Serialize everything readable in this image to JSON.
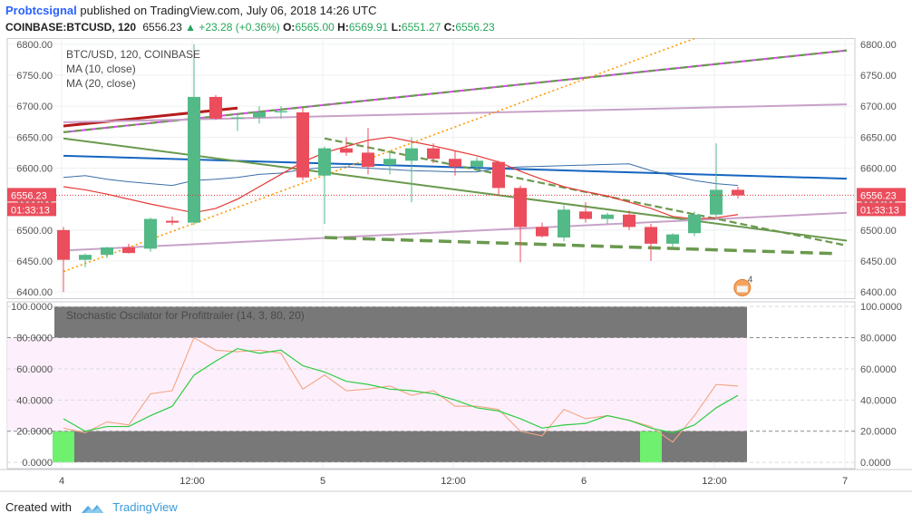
{
  "header": {
    "author": "Probtcsignal",
    "published_text": "published on TradingView.com, July 06, 2018 14:26 UTC",
    "symbol": "COINBASE:BTCUSD, 120",
    "last": "6556.23",
    "change": "+23.28 (+0.36%)",
    "o_label": "O:",
    "open": "6565.00",
    "h_label": "H:",
    "high": "6569.91",
    "l_label": "L:",
    "low": "6551.27",
    "c_label": "C:",
    "close": "6556.23"
  },
  "footer": {
    "created_with": "Created with",
    "brand": "TradingView"
  },
  "colors": {
    "up": "#53b987",
    "down": "#eb4d5c",
    "stoch_k": "#2ecc40",
    "stoch_d": "#f4a582",
    "accent": "#2962ff"
  },
  "chart_data": [
    {
      "type": "candlestick",
      "legend": [
        "BTC/USD, 120, COINBASE",
        "MA (10, close)",
        "MA (20, close)"
      ],
      "ylim": [
        6390,
        6810
      ],
      "y_ticks": [
        6400,
        6450,
        6500,
        6550,
        6600,
        6650,
        6700,
        6750,
        6800
      ],
      "y_tick_labels": [
        "6400.00",
        "6450.00",
        "6500.00",
        "6550.00",
        "6600.00",
        "6650.00",
        "6700.00",
        "6750.00",
        "6800.00"
      ],
      "x_labels": [
        "4",
        "12:00",
        "5",
        "12:00",
        "6",
        "12:00",
        "7"
      ],
      "price_label": "6556.23",
      "countdown_label": "01:33:13",
      "event_badge": "4",
      "candles": [
        {
          "o": 6500,
          "h": 6505,
          "l": 6400,
          "c": 6452
        },
        {
          "o": 6452,
          "h": 6462,
          "l": 6440,
          "c": 6460
        },
        {
          "o": 6460,
          "h": 6473,
          "l": 6455,
          "c": 6472
        },
        {
          "o": 6472,
          "h": 6478,
          "l": 6462,
          "c": 6463
        },
        {
          "o": 6470,
          "h": 6520,
          "l": 6465,
          "c": 6518
        },
        {
          "o": 6515,
          "h": 6522,
          "l": 6508,
          "c": 6512
        },
        {
          "o": 6512,
          "h": 6800,
          "l": 6508,
          "c": 6715
        },
        {
          "o": 6715,
          "h": 6718,
          "l": 6678,
          "c": 6680
        },
        {
          "o": 6680,
          "h": 6688,
          "l": 6660,
          "c": 6682
        },
        {
          "o": 6682,
          "h": 6700,
          "l": 6672,
          "c": 6690
        },
        {
          "o": 6690,
          "h": 6700,
          "l": 6680,
          "c": 6692
        },
        {
          "o": 6690,
          "h": 6698,
          "l": 6580,
          "c": 6585
        },
        {
          "o": 6588,
          "h": 6635,
          "l": 6510,
          "c": 6632
        },
        {
          "o": 6632,
          "h": 6650,
          "l": 6620,
          "c": 6625
        },
        {
          "o": 6625,
          "h": 6665,
          "l": 6590,
          "c": 6602
        },
        {
          "o": 6605,
          "h": 6628,
          "l": 6590,
          "c": 6615
        },
        {
          "o": 6612,
          "h": 6650,
          "l": 6545,
          "c": 6632
        },
        {
          "o": 6632,
          "h": 6640,
          "l": 6608,
          "c": 6615
        },
        {
          "o": 6615,
          "h": 6628,
          "l": 6588,
          "c": 6602
        },
        {
          "o": 6602,
          "h": 6618,
          "l": 6595,
          "c": 6612
        },
        {
          "o": 6610,
          "h": 6612,
          "l": 6555,
          "c": 6568
        },
        {
          "o": 6568,
          "h": 6572,
          "l": 6448,
          "c": 6505
        },
        {
          "o": 6505,
          "h": 6512,
          "l": 6488,
          "c": 6490
        },
        {
          "o": 6488,
          "h": 6540,
          "l": 6482,
          "c": 6533
        },
        {
          "o": 6530,
          "h": 6545,
          "l": 6512,
          "c": 6518
        },
        {
          "o": 6518,
          "h": 6528,
          "l": 6510,
          "c": 6525
        },
        {
          "o": 6525,
          "h": 6532,
          "l": 6500,
          "c": 6505
        },
        {
          "o": 6505,
          "h": 6510,
          "l": 6450,
          "c": 6478
        },
        {
          "o": 6478,
          "h": 6495,
          "l": 6472,
          "c": 6493
        },
        {
          "o": 6495,
          "h": 6530,
          "l": 6490,
          "c": 6525
        },
        {
          "o": 6525,
          "h": 6640,
          "l": 6520,
          "c": 6565
        },
        {
          "o": 6565,
          "h": 6570,
          "l": 6551,
          "c": 6556
        }
      ],
      "ma10": [
        6570,
        6565,
        6558,
        6550,
        6542,
        6535,
        6528,
        6535,
        6550,
        6570,
        6590,
        6610,
        6625,
        6635,
        6645,
        6650,
        6643,
        6636,
        6628,
        6620,
        6610,
        6595,
        6582,
        6570,
        6562,
        6555,
        6545,
        6535,
        6522,
        6518,
        6520,
        6525
      ],
      "ma20": [
        6585,
        6588,
        6582,
        6578,
        6575,
        6572,
        6580,
        6582,
        6585,
        6590,
        6592,
        6598,
        6601,
        6602,
        6600,
        6598,
        6596,
        6595,
        6594,
        6594,
        6600,
        6602,
        6603,
        6604,
        6605,
        6606,
        6607,
        6596,
        6588,
        6580,
        6575,
        6572
      ],
      "trendlines": [
        {
          "x0": 0,
          "y0": 6668,
          "x1": 8,
          "y1": 6697,
          "color": "#b71c1c",
          "style": "solid"
        },
        {
          "x0": 0,
          "y0": 6658,
          "x1": 36,
          "y1": 6790,
          "color": "#e040fb",
          "style": "solid"
        },
        {
          "x0": 0,
          "y0": 6658,
          "x1": 36,
          "y1": 6790,
          "color": "#6a994e",
          "style": "dash"
        },
        {
          "x0": 0,
          "y0": 6674,
          "x1": 36,
          "y1": 6703,
          "color": "#c8a2c8",
          "style": "solid"
        },
        {
          "x0": 0,
          "y0": 6620,
          "x1": 36,
          "y1": 6583,
          "color": "#1565c0",
          "style": "solid"
        },
        {
          "x0": 0,
          "y0": 6648,
          "x1": 36,
          "y1": 6483,
          "color": "#6a994e",
          "style": "solid"
        },
        {
          "x0": 0,
          "y0": 6467,
          "x1": 36,
          "y1": 6528,
          "color": "#c8a2c8",
          "style": "solid"
        },
        {
          "x0": 0,
          "y0": 6433,
          "x1": 36,
          "y1": 6900,
          "color": "#ff9800",
          "style": "dot"
        },
        {
          "x0": 12,
          "y0": 6648,
          "x1": 36,
          "y1": 6475,
          "color": "#6a994e",
          "style": "dash"
        },
        {
          "x0": 12,
          "y0": 6488,
          "x1": 35.5,
          "y1": 6462,
          "color": "#6a994e",
          "style": "dashthick"
        }
      ]
    },
    {
      "type": "line",
      "title": "Stochastic Oscilator for Profittrailer (14, 3, 80, 20)",
      "ylim": [
        -4,
        103
      ],
      "y_ticks": [
        0,
        20,
        40,
        60,
        80,
        100
      ],
      "y_tick_labels": [
        "0.0000",
        "20.0000",
        "40.0000",
        "60.0000",
        "80.0000",
        "100.0000"
      ],
      "upper_band": 80,
      "lower_band": 20,
      "series": [
        {
          "values": [
            28,
            20,
            23,
            23,
            30,
            36,
            56,
            65,
            73,
            70,
            72,
            62,
            58,
            52,
            50,
            47,
            46,
            44,
            40,
            35,
            33,
            28,
            22,
            24,
            25,
            30,
            27,
            22,
            19,
            24,
            35,
            43
          ]
        },
        {
          "values": [
            22,
            19,
            26,
            24,
            44,
            46,
            80,
            72,
            71,
            72,
            70,
            47,
            56,
            46,
            47,
            49,
            43,
            46,
            36,
            36,
            34,
            20,
            17,
            34,
            28,
            30,
            27,
            23,
            13,
            30,
            50,
            49
          ]
        }
      ],
      "highlights": [
        {
          "i0": 0,
          "i1": 1,
          "band": "low"
        },
        {
          "i0": 27,
          "i1": 28,
          "band": "low"
        }
      ]
    }
  ]
}
